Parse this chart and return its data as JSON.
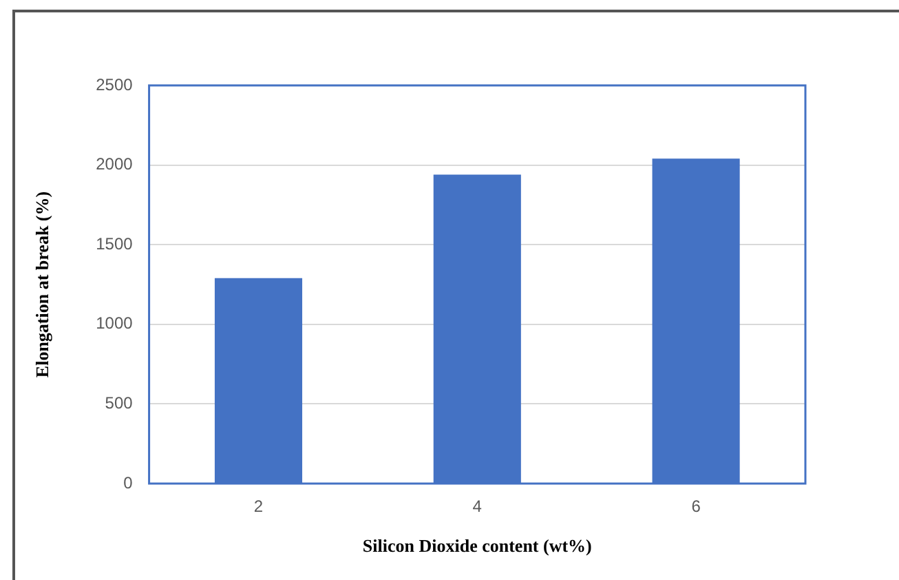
{
  "chart_data": {
    "type": "bar",
    "xlabel": "Silicon Dioxide content (wt%)",
    "ylabel": "Elongation at break (%)",
    "categories": [
      "2",
      "4",
      "6"
    ],
    "values": [
      1290,
      1940,
      2040
    ],
    "color": "#4472c4",
    "ylim": [
      0,
      2500
    ],
    "yticks": [
      0,
      500,
      1000,
      1500,
      2000,
      2500
    ],
    "grid": "y",
    "legend": false
  }
}
